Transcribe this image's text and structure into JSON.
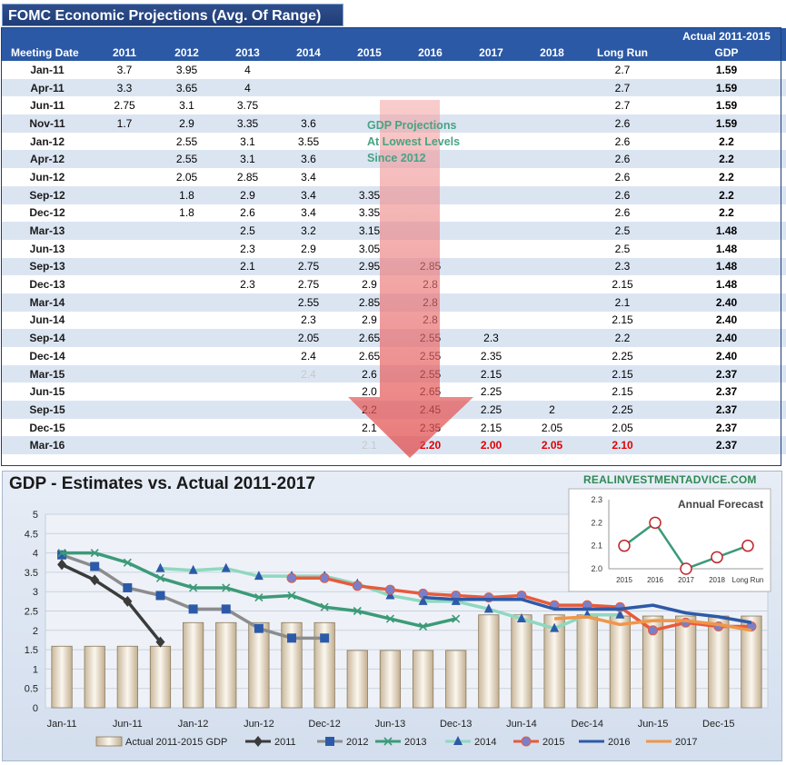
{
  "table": {
    "title": "FOMC Economic Projections (Avg. Of Range)",
    "header_top_right": "Actual 2011-2015",
    "columns": [
      "Meeting Date",
      "2011",
      "2012",
      "2013",
      "2014",
      "2015",
      "2016",
      "2017",
      "2018",
      "Long Run",
      "GDP"
    ],
    "rows": [
      [
        "Jan-11",
        "3.7",
        "3.95",
        "4",
        "",
        "",
        "",
        "",
        "",
        "2.7",
        "1.59"
      ],
      [
        "Apr-11",
        "3.3",
        "3.65",
        "4",
        "",
        "",
        "",
        "",
        "",
        "2.7",
        "1.59"
      ],
      [
        "Jun-11",
        "2.75",
        "3.1",
        "3.75",
        "",
        "",
        "",
        "",
        "",
        "2.7",
        "1.59"
      ],
      [
        "Nov-11",
        "1.7",
        "2.9",
        "3.35",
        "3.6",
        "",
        "",
        "",
        "",
        "2.6",
        "1.59"
      ],
      [
        "Jan-12",
        "",
        "2.55",
        "3.1",
        "3.55",
        "",
        "",
        "",
        "",
        "2.6",
        "2.2"
      ],
      [
        "Apr-12",
        "",
        "2.55",
        "3.1",
        "3.6",
        "",
        "",
        "",
        "",
        "2.6",
        "2.2"
      ],
      [
        "Jun-12",
        "",
        "2.05",
        "2.85",
        "3.4",
        "",
        "",
        "",
        "",
        "2.6",
        "2.2"
      ],
      [
        "Sep-12",
        "",
        "1.8",
        "2.9",
        "3.4",
        "3.35",
        "",
        "",
        "",
        "2.6",
        "2.2"
      ],
      [
        "Dec-12",
        "",
        "1.8",
        "2.6",
        "3.4",
        "3.35",
        "",
        "",
        "",
        "2.6",
        "2.2"
      ],
      [
        "Mar-13",
        "",
        "",
        "2.5",
        "3.2",
        "3.15",
        "",
        "",
        "",
        "2.5",
        "1.48"
      ],
      [
        "Jun-13",
        "",
        "",
        "2.3",
        "2.9",
        "3.05",
        "",
        "",
        "",
        "2.5",
        "1.48"
      ],
      [
        "Sep-13",
        "",
        "",
        "2.1",
        "2.75",
        "2.95",
        "2.85",
        "",
        "",
        "2.3",
        "1.48"
      ],
      [
        "Dec-13",
        "",
        "",
        "2.3",
        "2.75",
        "2.9",
        "2.8",
        "",
        "",
        "2.15",
        "1.48"
      ],
      [
        "Mar-14",
        "",
        "",
        "",
        "2.55",
        "2.85",
        "2.8",
        "",
        "",
        "2.1",
        "2.40"
      ],
      [
        "Jun-14",
        "",
        "",
        "",
        "2.3",
        "2.9",
        "2.8",
        "",
        "",
        "2.15",
        "2.40"
      ],
      [
        "Sep-14",
        "",
        "",
        "",
        "2.05",
        "2.65",
        "2.55",
        "2.3",
        "",
        "2.2",
        "2.40"
      ],
      [
        "Dec-14",
        "",
        "",
        "",
        "2.4",
        "2.65",
        "2.55",
        "2.35",
        "",
        "2.25",
        "2.40"
      ],
      [
        "Mar-15",
        "",
        "",
        "",
        "2.4",
        "2.6",
        "2.55",
        "2.15",
        "",
        "2.15",
        "2.37"
      ],
      [
        "Jun-15",
        "",
        "",
        "",
        "",
        "2.0",
        "2.65",
        "2.25",
        "",
        "2.15",
        "2.37"
      ],
      [
        "Sep-15",
        "",
        "",
        "",
        "",
        "2.2",
        "2.45",
        "2.25",
        "2",
        "2.25",
        "2.37"
      ],
      [
        "Dec-15",
        "",
        "",
        "",
        "",
        "2.1",
        "2.35",
        "2.15",
        "2.05",
        "2.05",
        "2.37"
      ],
      [
        "Mar-16",
        "",
        "",
        "",
        "",
        "2.1",
        "2.20",
        "2.00",
        "2.05",
        "2.10",
        "2.37"
      ]
    ],
    "annotation_lines": [
      "GDP Projections",
      "At Lowest Levels",
      "Since 2012"
    ]
  },
  "chart_data": [
    {
      "type": "line",
      "title": "GDP - Estimates vs. Actual 2011-2017",
      "watermark": "REALINVESTMENTADVICE.COM",
      "x": [
        "Jan-11",
        "Apr-11",
        "Jun-11",
        "Nov-11",
        "Jan-12",
        "Apr-12",
        "Jun-12",
        "Sep-12",
        "Dec-12",
        "Mar-13",
        "Jun-13",
        "Sep-13",
        "Dec-13",
        "Mar-14",
        "Jun-14",
        "Sep-14",
        "Dec-14",
        "Mar-15",
        "Jun-15",
        "Sep-15",
        "Dec-15",
        "Mar-16"
      ],
      "x_tick_labels": [
        "Jan-11",
        "Jun-11",
        "Jan-12",
        "Jun-12",
        "Dec-12",
        "Jun-13",
        "Dec-13",
        "Jun-14",
        "Dec-14",
        "Jun-15",
        "Dec-15"
      ],
      "ylim": [
        0,
        5
      ],
      "y_ticks": [
        "0",
        "0.5",
        "1",
        "1.5",
        "2",
        "2.5",
        "3",
        "3.5",
        "4",
        "4.5",
        "5"
      ],
      "grid": true,
      "legend_position": "bottom",
      "bar_series": {
        "name": "Actual 2011-2015 GDP",
        "values": [
          1.59,
          1.59,
          1.59,
          1.59,
          2.2,
          2.2,
          2.2,
          2.2,
          2.2,
          1.48,
          1.48,
          1.48,
          1.48,
          2.4,
          2.4,
          2.4,
          2.4,
          2.37,
          2.37,
          2.37,
          2.37,
          2.37
        ]
      },
      "series": [
        {
          "name": "2011",
          "color": "#3b3b3b",
          "marker": "diamond",
          "values": [
            3.7,
            3.3,
            2.75,
            1.7,
            null,
            null,
            null,
            null,
            null,
            null,
            null,
            null,
            null,
            null,
            null,
            null,
            null,
            null,
            null,
            null,
            null,
            null
          ]
        },
        {
          "name": "2012",
          "color": "#8c8c8c",
          "marker": "square",
          "values": [
            3.95,
            3.65,
            3.1,
            2.9,
            2.55,
            2.55,
            2.05,
            1.8,
            1.8,
            null,
            null,
            null,
            null,
            null,
            null,
            null,
            null,
            null,
            null,
            null,
            null,
            null
          ]
        },
        {
          "name": "2013",
          "color": "#3d9a78",
          "marker": "x",
          "values": [
            4,
            4,
            3.75,
            3.35,
            3.1,
            3.1,
            2.85,
            2.9,
            2.6,
            2.5,
            2.3,
            2.1,
            2.3,
            null,
            null,
            null,
            null,
            null,
            null,
            null,
            null,
            null
          ]
        },
        {
          "name": "2014",
          "color": "#8fd8c0",
          "marker": "triangle",
          "values": [
            null,
            null,
            null,
            3.6,
            3.55,
            3.6,
            3.4,
            3.4,
            3.4,
            3.2,
            2.9,
            2.75,
            2.75,
            2.55,
            2.3,
            2.05,
            2.4,
            2.4,
            null,
            null,
            null,
            null
          ]
        },
        {
          "name": "2015",
          "color": "#e85a3c",
          "marker": "circle",
          "values": [
            null,
            null,
            null,
            null,
            null,
            null,
            null,
            3.35,
            3.35,
            3.15,
            3.05,
            2.95,
            2.9,
            2.85,
            2.9,
            2.65,
            2.65,
            2.6,
            2.0,
            2.2,
            2.1,
            2.1
          ]
        },
        {
          "name": "2016",
          "color": "#2d5aa8",
          "marker": "none",
          "values": [
            null,
            null,
            null,
            null,
            null,
            null,
            null,
            null,
            null,
            null,
            null,
            2.85,
            2.8,
            2.8,
            2.8,
            2.55,
            2.55,
            2.55,
            2.65,
            2.45,
            2.35,
            2.2
          ]
        },
        {
          "name": "2017",
          "color": "#f0964a",
          "marker": "none",
          "values": [
            null,
            null,
            null,
            null,
            null,
            null,
            null,
            null,
            null,
            null,
            null,
            null,
            null,
            null,
            null,
            2.3,
            2.35,
            2.15,
            2.25,
            2.25,
            2.15,
            2.0
          ]
        }
      ]
    },
    {
      "type": "line",
      "title": "Annual Forecast",
      "categories": [
        "2015",
        "2016",
        "2017",
        "2018",
        "Long Run"
      ],
      "values": [
        2.1,
        2.2,
        2.0,
        2.05,
        2.1
      ],
      "ylim": [
        2.0,
        2.3
      ],
      "y_ticks": [
        "2.0",
        "2.1",
        "2.2",
        "2.3"
      ],
      "color": "#3d9a78"
    }
  ]
}
